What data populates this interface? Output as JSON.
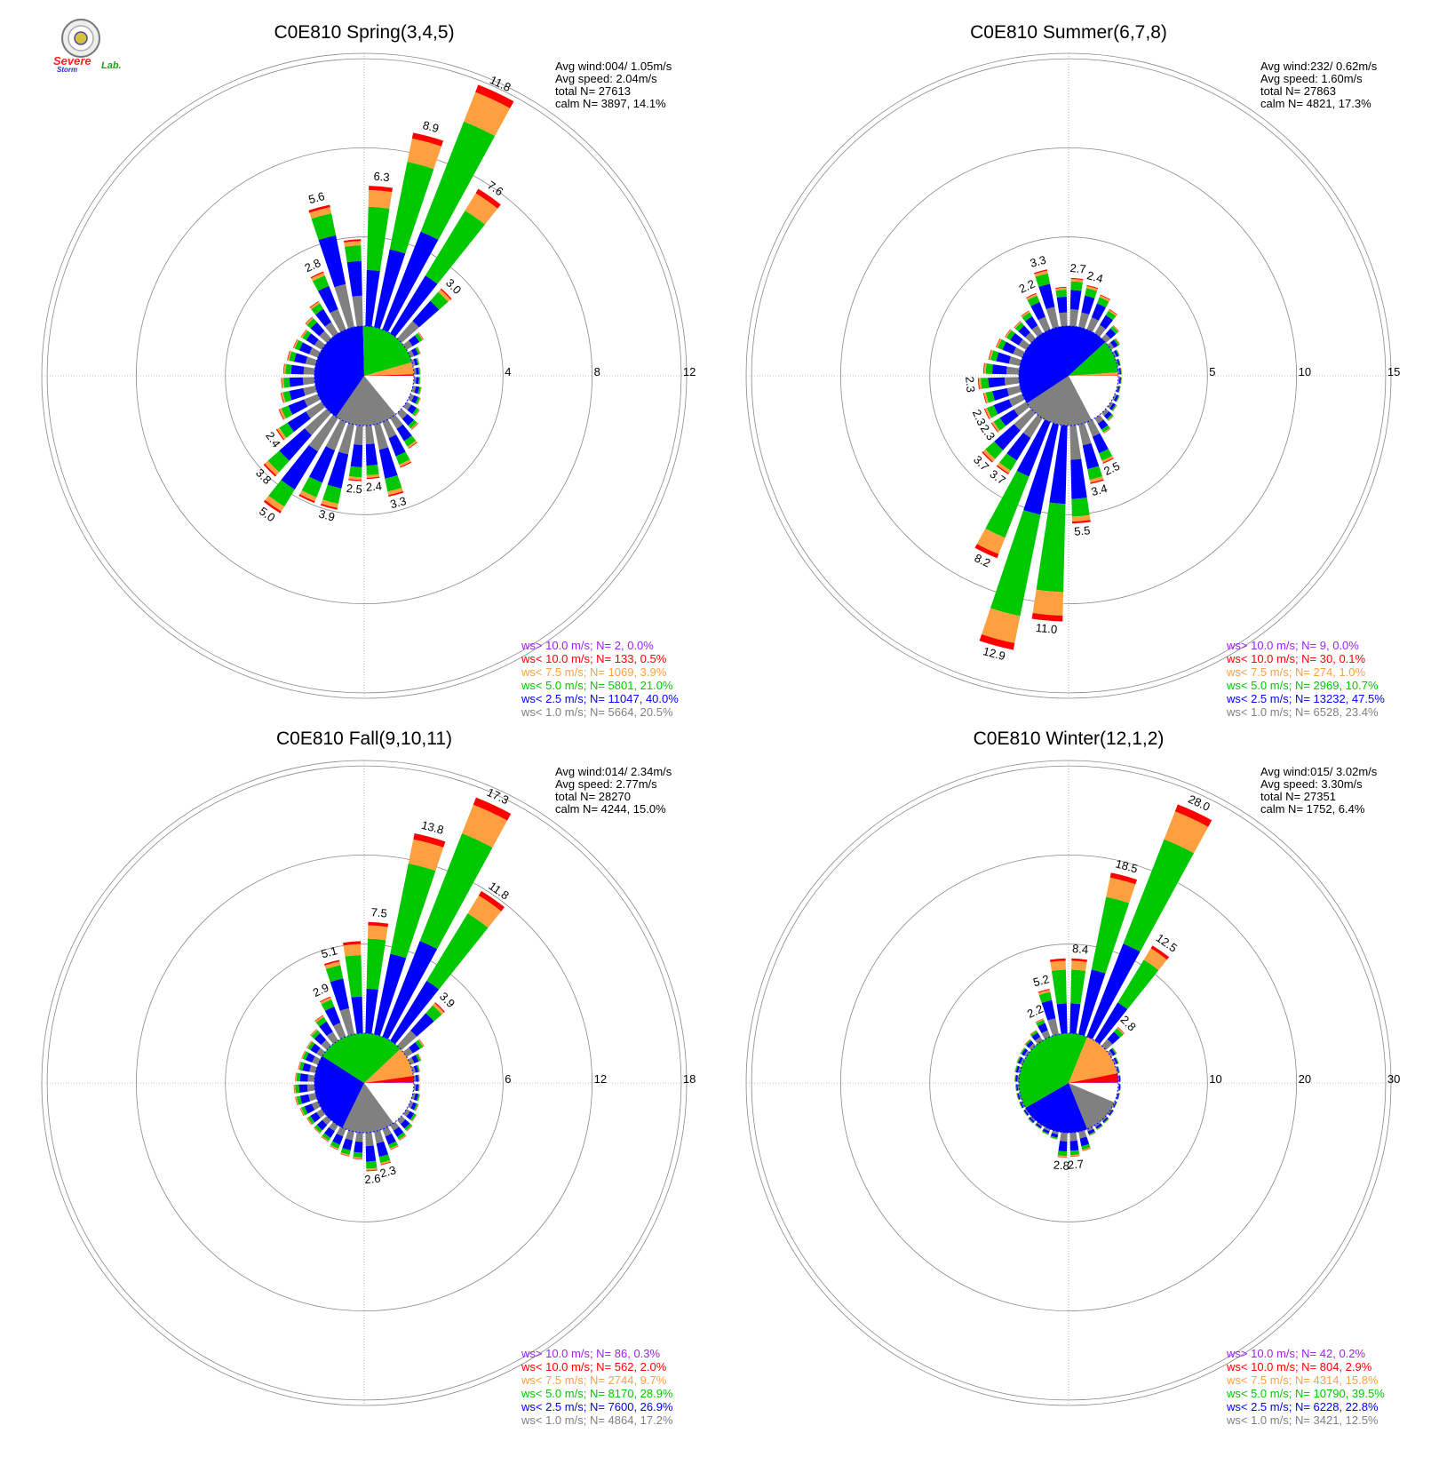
{
  "palette": {
    "gt10": "#a020f0",
    "lt10": "#ff0000",
    "lt75": "#ffa040",
    "lt50": "#00c800",
    "lt25": "#0000ff",
    "lt10calm": "#808080",
    "calm": "#ffffff",
    "grid": "#888888"
  },
  "logo": {
    "icon": "seal-icon",
    "line1": "Severe",
    "line2": "Storm",
    "line3": "Lab."
  },
  "chart_data": [
    {
      "type": "windrose",
      "title": "C0E810 Spring(3,4,5)",
      "rings": [
        4,
        8,
        12
      ],
      "stats": {
        "avg_wind": "Avg wind:004/ 1.05m/s",
        "avg_speed": "Avg speed: 2.04m/s",
        "total": "total N=      27613",
        "calm": "calm N=   3897,  14.1%"
      },
      "legend": [
        {
          "label": "ws> 10.0 m/s; N=      2,  0.0%",
          "color": "#a020f0"
        },
        {
          "label": "ws< 10.0 m/s; N=   133,  0.5%",
          "color": "#ff0000"
        },
        {
          "label": "ws<  7.5 m/s; N=  1069,  3.9%",
          "color": "#ffa040"
        },
        {
          "label": "ws<  5.0 m/s; N=  5801, 21.0%",
          "color": "#00c800"
        },
        {
          "label": "ws<  2.5 m/s; N= 11047, 40.0%",
          "color": "#0000ff"
        },
        {
          "label": "ws<  1.0 m/s; N=  5664, 20.5%",
          "color": "#808080"
        }
      ],
      "pie": [
        14.1,
        20.5,
        40.0,
        21.0,
        3.9,
        0.5
      ],
      "bars": [
        {
          "dir": 5,
          "pct": 6.3,
          "label": "6.3"
        },
        {
          "dir": 15,
          "pct": 8.9,
          "label": "8.9"
        },
        {
          "dir": 25,
          "pct": 11.8,
          "label": "11.8"
        },
        {
          "dir": 35,
          "pct": 7.6,
          "label": "7.6"
        },
        {
          "dir": 45,
          "pct": 3.0,
          "label": "3.0"
        },
        {
          "dir": 55,
          "pct": 0.9
        },
        {
          "dir": 65,
          "pct": 0.5
        },
        {
          "dir": 75,
          "pct": 0.3
        },
        {
          "dir": 85,
          "pct": 0.3
        },
        {
          "dir": 95,
          "pct": 0.3
        },
        {
          "dir": 105,
          "pct": 0.4
        },
        {
          "dir": 115,
          "pct": 0.5
        },
        {
          "dir": 125,
          "pct": 0.7
        },
        {
          "dir": 135,
          "pct": 1.0
        },
        {
          "dir": 145,
          "pct": 1.6
        },
        {
          "dir": 155,
          "pct": 2.2
        },
        {
          "dir": 165,
          "pct": 3.3,
          "label": "3.3"
        },
        {
          "dir": 175,
          "pct": 2.4,
          "label": "2.4"
        },
        {
          "dir": 185,
          "pct": 2.5,
          "label": "2.5"
        },
        {
          "dir": 195,
          "pct": 3.9,
          "label": "3.9"
        },
        {
          "dir": 205,
          "pct": 3.9
        },
        {
          "dir": 215,
          "pct": 5.0,
          "label": "5.0"
        },
        {
          "dir": 225,
          "pct": 3.8,
          "label": "3.8"
        },
        {
          "dir": 235,
          "pct": 2.4,
          "label": "2.4"
        },
        {
          "dir": 245,
          "pct": 1.9
        },
        {
          "dir": 255,
          "pct": 1.6
        },
        {
          "dir": 265,
          "pct": 1.5
        },
        {
          "dir": 275,
          "pct": 1.4
        },
        {
          "dir": 285,
          "pct": 1.3
        },
        {
          "dir": 295,
          "pct": 1.2
        },
        {
          "dir": 305,
          "pct": 1.1
        },
        {
          "dir": 315,
          "pct": 1.3
        },
        {
          "dir": 325,
          "pct": 1.7
        },
        {
          "dir": 335,
          "pct": 2.8,
          "label": "2.8"
        },
        {
          "dir": 345,
          "pct": 5.6,
          "label": "5.6"
        },
        {
          "dir": 355,
          "pct": 3.9
        }
      ]
    },
    {
      "type": "windrose",
      "title": "C0E810 Summer(6,7,8)",
      "rings": [
        5,
        10,
        15
      ],
      "stats": {
        "avg_wind": "Avg wind:232/ 0.62m/s",
        "avg_speed": "Avg speed: 1.60m/s",
        "total": "total N=      27863",
        "calm": "calm N=   4821,  17.3%"
      },
      "legend": [
        {
          "label": "ws> 10.0 m/s; N=      9,  0.0%",
          "color": "#a020f0"
        },
        {
          "label": "ws< 10.0 m/s; N=     30,  0.1%",
          "color": "#ff0000"
        },
        {
          "label": "ws<  7.5 m/s; N=    274,  1.0%",
          "color": "#ffa040"
        },
        {
          "label": "ws<  5.0 m/s; N=  2969, 10.7%",
          "color": "#00c800"
        },
        {
          "label": "ws<  2.5 m/s; N= 13232, 47.5%",
          "color": "#0000ff"
        },
        {
          "label": "ws<  1.0 m/s; N=  6528, 23.4%",
          "color": "#808080"
        }
      ],
      "pie": [
        17.3,
        23.4,
        47.5,
        10.7,
        1.0,
        0.1
      ],
      "bars": [
        {
          "dir": 5,
          "pct": 2.7,
          "label": "2.7"
        },
        {
          "dir": 15,
          "pct": 2.4,
          "label": "2.4"
        },
        {
          "dir": 25,
          "pct": 2.1
        },
        {
          "dir": 35,
          "pct": 1.6
        },
        {
          "dir": 45,
          "pct": 1.0
        },
        {
          "dir": 55,
          "pct": 0.6
        },
        {
          "dir": 65,
          "pct": 0.3
        },
        {
          "dir": 75,
          "pct": 0.2
        },
        {
          "dir": 85,
          "pct": 0.2
        },
        {
          "dir": 95,
          "pct": 0.2
        },
        {
          "dir": 105,
          "pct": 0.2
        },
        {
          "dir": 115,
          "pct": 0.3
        },
        {
          "dir": 125,
          "pct": 0.4
        },
        {
          "dir": 135,
          "pct": 0.6
        },
        {
          "dir": 145,
          "pct": 1.0
        },
        {
          "dir": 155,
          "pct": 2.5,
          "label": "2.5"
        },
        {
          "dir": 165,
          "pct": 3.4,
          "label": "3.4"
        },
        {
          "dir": 175,
          "pct": 5.5,
          "label": "5.5"
        },
        {
          "dir": 185,
          "pct": 11.0,
          "label": "11.0"
        },
        {
          "dir": 195,
          "pct": 12.9,
          "label": "12.9"
        },
        {
          "dir": 205,
          "pct": 8.2,
          "label": "8.2"
        },
        {
          "dir": 215,
          "pct": 3.7,
          "label": "3.7"
        },
        {
          "dir": 225,
          "pct": 3.7,
          "label": "3.7"
        },
        {
          "dir": 235,
          "pct": 2.3,
          "label": "2.3"
        },
        {
          "dir": 245,
          "pct": 2.3,
          "label": "2.3"
        },
        {
          "dir": 255,
          "pct": 2.1
        },
        {
          "dir": 265,
          "pct": 2.3,
          "label": "2.3"
        },
        {
          "dir": 275,
          "pct": 2.0
        },
        {
          "dir": 285,
          "pct": 1.8
        },
        {
          "dir": 295,
          "pct": 1.6
        },
        {
          "dir": 305,
          "pct": 1.4
        },
        {
          "dir": 315,
          "pct": 1.3
        },
        {
          "dir": 325,
          "pct": 1.5
        },
        {
          "dir": 335,
          "pct": 2.2,
          "label": "2.2"
        },
        {
          "dir": 345,
          "pct": 3.3,
          "label": "3.3"
        },
        {
          "dir": 355,
          "pct": 2.2
        }
      ]
    },
    {
      "type": "windrose",
      "title": "C0E810 Fall(9,10,11)",
      "rings": [
        6,
        12,
        18
      ],
      "stats": {
        "avg_wind": "Avg wind:014/ 2.34m/s",
        "avg_speed": "Avg speed: 2.77m/s",
        "total": "total N=      28270",
        "calm": "calm N=   4244,  15.0%"
      },
      "legend": [
        {
          "label": "ws> 10.0 m/s; N=     86,  0.3%",
          "color": "#a020f0"
        },
        {
          "label": "ws< 10.0 m/s; N=   562,  2.0%",
          "color": "#ff0000"
        },
        {
          "label": "ws<  7.5 m/s; N=  2744,  9.7%",
          "color": "#ffa040"
        },
        {
          "label": "ws<  5.0 m/s; N=  8170, 28.9%",
          "color": "#00c800"
        },
        {
          "label": "ws<  2.5 m/s; N=  7600, 26.9%",
          "color": "#0000ff"
        },
        {
          "label": "ws<  1.0 m/s; N=  4864, 17.2%",
          "color": "#808080"
        }
      ],
      "pie": [
        15.0,
        17.2,
        26.9,
        28.9,
        9.7,
        2.0,
        0.3
      ],
      "bars": [
        {
          "dir": 5,
          "pct": 7.5,
          "label": "7.5"
        },
        {
          "dir": 15,
          "pct": 13.8,
          "label": "13.8"
        },
        {
          "dir": 25,
          "pct": 17.3,
          "label": "17.3"
        },
        {
          "dir": 35,
          "pct": 11.8,
          "label": "11.8"
        },
        {
          "dir": 45,
          "pct": 3.9,
          "label": "3.9"
        },
        {
          "dir": 55,
          "pct": 1.4
        },
        {
          "dir": 65,
          "pct": 0.8
        },
        {
          "dir": 75,
          "pct": 0.5
        },
        {
          "dir": 85,
          "pct": 0.4
        },
        {
          "dir": 95,
          "pct": 0.4
        },
        {
          "dir": 105,
          "pct": 0.5
        },
        {
          "dir": 115,
          "pct": 0.6
        },
        {
          "dir": 125,
          "pct": 0.8
        },
        {
          "dir": 135,
          "pct": 1.0
        },
        {
          "dir": 145,
          "pct": 1.2
        },
        {
          "dir": 155,
          "pct": 1.5
        },
        {
          "dir": 165,
          "pct": 2.3,
          "label": "2.3"
        },
        {
          "dir": 175,
          "pct": 2.6,
          "label": "2.6"
        },
        {
          "dir": 185,
          "pct": 1.8
        },
        {
          "dir": 195,
          "pct": 1.7
        },
        {
          "dir": 205,
          "pct": 1.5
        },
        {
          "dir": 215,
          "pct": 1.3
        },
        {
          "dir": 225,
          "pct": 1.2
        },
        {
          "dir": 235,
          "pct": 1.2
        },
        {
          "dir": 245,
          "pct": 1.3
        },
        {
          "dir": 255,
          "pct": 1.4
        },
        {
          "dir": 265,
          "pct": 1.4
        },
        {
          "dir": 275,
          "pct": 1.3
        },
        {
          "dir": 285,
          "pct": 1.2
        },
        {
          "dir": 295,
          "pct": 1.2
        },
        {
          "dir": 305,
          "pct": 1.2
        },
        {
          "dir": 315,
          "pct": 1.5
        },
        {
          "dir": 325,
          "pct": 2.0
        },
        {
          "dir": 335,
          "pct": 2.9,
          "label": "2.9"
        },
        {
          "dir": 345,
          "pct": 5.1,
          "label": "5.1"
        },
        {
          "dir": 355,
          "pct": 6.2
        }
      ]
    },
    {
      "type": "windrose",
      "title": "C0E810 Winter(12,1,2)",
      "rings": [
        10,
        20,
        30
      ],
      "stats": {
        "avg_wind": "Avg wind:015/ 3.02m/s",
        "avg_speed": "Avg speed: 3.30m/s",
        "total": "total N=      27351",
        "calm": "calm N=   1752,   6.4%"
      },
      "legend": [
        {
          "label": "ws> 10.0 m/s; N=     42,  0.2%",
          "color": "#a020f0"
        },
        {
          "label": "ws< 10.0 m/s; N=   804,  2.9%",
          "color": "#ff0000"
        },
        {
          "label": "ws<  7.5 m/s; N=  4314, 15.8%",
          "color": "#ffa040"
        },
        {
          "label": "ws<  5.0 m/s; N= 10790, 39.5%",
          "color": "#00c800"
        },
        {
          "label": "ws<  2.5 m/s; N=  6228, 22.8%",
          "color": "#0000ff"
        },
        {
          "label": "ws<  1.0 m/s; N=  3421, 12.5%",
          "color": "#808080"
        }
      ],
      "pie": [
        6.4,
        12.5,
        22.8,
        39.5,
        15.8,
        2.9,
        0.2
      ],
      "bars": [
        {
          "dir": 5,
          "pct": 8.4,
          "label": "8.4"
        },
        {
          "dir": 15,
          "pct": 18.5,
          "label": "18.5"
        },
        {
          "dir": 25,
          "pct": 28.0,
          "label": "28.0"
        },
        {
          "dir": 35,
          "pct": 12.5,
          "label": "12.5"
        },
        {
          "dir": 45,
          "pct": 2.8,
          "label": "2.8"
        },
        {
          "dir": 55,
          "pct": 0.8
        },
        {
          "dir": 65,
          "pct": 0.5
        },
        {
          "dir": 75,
          "pct": 0.3
        },
        {
          "dir": 85,
          "pct": 0.3
        },
        {
          "dir": 95,
          "pct": 0.3
        },
        {
          "dir": 105,
          "pct": 0.3
        },
        {
          "dir": 115,
          "pct": 0.3
        },
        {
          "dir": 125,
          "pct": 0.4
        },
        {
          "dir": 135,
          "pct": 0.5
        },
        {
          "dir": 145,
          "pct": 0.6
        },
        {
          "dir": 155,
          "pct": 0.8
        },
        {
          "dir": 165,
          "pct": 2.2
        },
        {
          "dir": 175,
          "pct": 2.7,
          "label": "2.7"
        },
        {
          "dir": 185,
          "pct": 2.8,
          "label": "2.8"
        },
        {
          "dir": 195,
          "pct": 0.9
        },
        {
          "dir": 205,
          "pct": 0.7
        },
        {
          "dir": 215,
          "pct": 0.5
        },
        {
          "dir": 225,
          "pct": 0.5
        },
        {
          "dir": 235,
          "pct": 0.4
        },
        {
          "dir": 245,
          "pct": 0.4
        },
        {
          "dir": 255,
          "pct": 0.4
        },
        {
          "dir": 265,
          "pct": 0.4
        },
        {
          "dir": 275,
          "pct": 0.5
        },
        {
          "dir": 285,
          "pct": 0.6
        },
        {
          "dir": 295,
          "pct": 0.7
        },
        {
          "dir": 305,
          "pct": 0.8
        },
        {
          "dir": 315,
          "pct": 1.0
        },
        {
          "dir": 325,
          "pct": 1.4
        },
        {
          "dir": 335,
          "pct": 2.2,
          "label": "2.2"
        },
        {
          "dir": 345,
          "pct": 5.2,
          "label": "5.2"
        },
        {
          "dir": 355,
          "pct": 8.4
        }
      ]
    }
  ]
}
